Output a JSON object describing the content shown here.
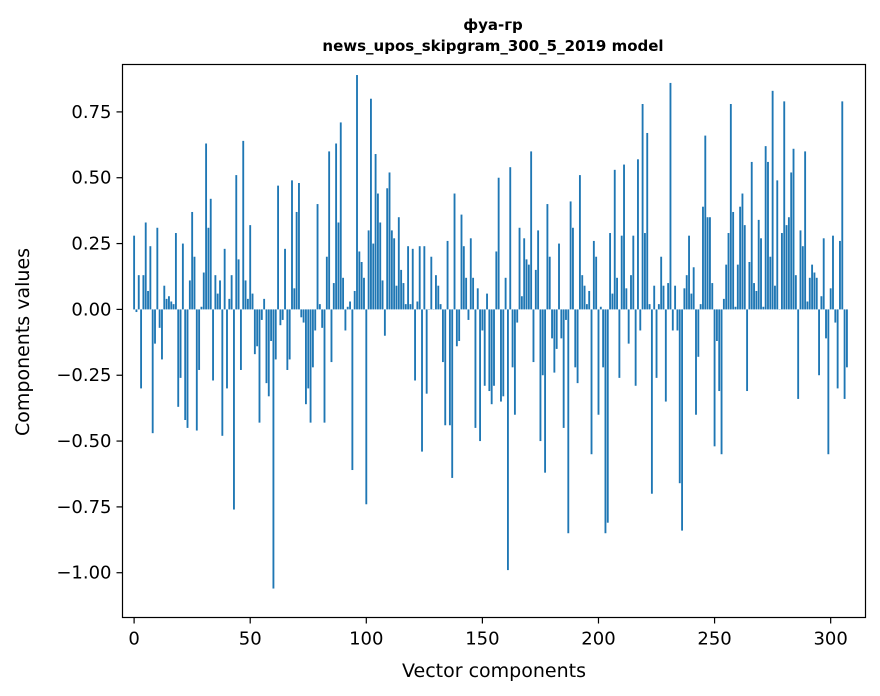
{
  "chart_data": {
    "type": "bar",
    "title": "фуа-гр",
    "subtitle": "news_upos_skipgram_300_5_2019 model",
    "xlabel": "Vector components",
    "ylabel": "Components values",
    "xlim": [
      -5,
      315
    ],
    "ylim": [
      -1.17,
      0.93
    ],
    "xticks": [
      0,
      50,
      100,
      150,
      200,
      250,
      300
    ],
    "xtick_labels": [
      "0",
      "50",
      "100",
      "150",
      "200",
      "250",
      "300"
    ],
    "yticks": [
      0.75,
      0.5,
      0.25,
      0.0,
      -0.25,
      -0.5,
      -0.75,
      -1.0
    ],
    "ytick_labels": [
      "0.75",
      "0.50",
      "0.25",
      "0.00",
      "−0.25",
      "−0.50",
      "−0.75",
      "−1.00"
    ],
    "bar_color": "#1f77b4",
    "grid": false,
    "legend": "none",
    "values": [
      0.28,
      -0.01,
      0.13,
      -0.3,
      0.13,
      0.33,
      0.07,
      0.24,
      -0.47,
      -0.13,
      0.31,
      -0.07,
      -0.19,
      0.09,
      0.04,
      0.05,
      0.03,
      0.02,
      0.29,
      -0.37,
      -0.26,
      0.25,
      -0.42,
      -0.45,
      0.11,
      0.37,
      0.2,
      -0.46,
      -0.23,
      0.01,
      0.14,
      0.63,
      0.31,
      0.42,
      -0.27,
      0.13,
      0.06,
      0.11,
      -0.48,
      0.23,
      -0.3,
      0.04,
      0.13,
      -0.76,
      0.51,
      0.19,
      -0.23,
      0.64,
      0.11,
      0.04,
      0.32,
      0.06,
      -0.17,
      -0.14,
      -0.43,
      -0.04,
      0.04,
      -0.28,
      -0.33,
      -0.12,
      -1.06,
      -0.19,
      0.47,
      -0.06,
      -0.04,
      0.23,
      -0.23,
      -0.19,
      0.49,
      0.08,
      0.37,
      0.48,
      -0.03,
      -0.05,
      -0.36,
      -0.3,
      -0.43,
      -0.22,
      -0.08,
      0.4,
      0.02,
      -0.07,
      -0.43,
      0.2,
      0.6,
      -0.2,
      0.1,
      0.63,
      0.33,
      0.71,
      0.12,
      -0.08,
      0.01,
      0.03,
      -0.61,
      0.07,
      0.89,
      0.22,
      0.18,
      0.12,
      -0.74,
      0.3,
      0.8,
      0.25,
      0.59,
      0.44,
      0.33,
      0.11,
      -0.1,
      0.46,
      0.52,
      0.3,
      0.27,
      0.09,
      0.35,
      0.15,
      0.1,
      0.02,
      0.24,
      0.02,
      0.23,
      -0.27,
      0.03,
      0.24,
      -0.54,
      0.24,
      -0.32,
      0.0,
      0.2,
      0.0,
      0.13,
      0.09,
      0.02,
      -0.2,
      -0.44,
      0.26,
      -0.44,
      -0.64,
      0.44,
      -0.14,
      -0.12,
      0.36,
      0.24,
      0.12,
      -0.04,
      0.27,
      0.12,
      -0.45,
      0.08,
      -0.5,
      -0.08,
      -0.29,
      0.06,
      -0.31,
      -0.36,
      -0.29,
      0.22,
      0.5,
      -0.35,
      -0.33,
      0.12,
      -0.99,
      0.54,
      -0.22,
      -0.4,
      -0.05,
      0.31,
      0.05,
      0.27,
      0.19,
      0.17,
      0.6,
      -0.2,
      0.15,
      0.3,
      -0.5,
      -0.25,
      -0.62,
      0.4,
      0.2,
      -0.11,
      -0.24,
      -0.15,
      0.25,
      -0.11,
      -0.45,
      -0.04,
      -0.85,
      0.41,
      0.31,
      -0.22,
      -0.28,
      0.51,
      0.13,
      0.09,
      0.02,
      0.07,
      -0.55,
      0.26,
      0.2,
      -0.4,
      0.01,
      -0.22,
      -0.85,
      -0.81,
      0.29,
      0.06,
      0.53,
      0.12,
      -0.26,
      0.28,
      0.55,
      0.08,
      -0.13,
      0.13,
      0.28,
      -0.29,
      0.57,
      -0.08,
      0.78,
      0.29,
      0.67,
      0.02,
      -0.7,
      0.09,
      -0.26,
      0.02,
      0.2,
      0.09,
      -0.35,
      0.1,
      0.86,
      -0.08,
      0.09,
      -0.08,
      -0.66,
      -0.84,
      0.08,
      0.13,
      0.28,
      0.06,
      0.16,
      -0.4,
      -0.18,
      0.02,
      0.39,
      0.66,
      0.35,
      0.35,
      0.1,
      -0.52,
      -0.12,
      -0.31,
      -0.55,
      0.04,
      0.17,
      0.29,
      0.78,
      0.37,
      0.01,
      0.17,
      0.39,
      0.44,
      0.32,
      -0.31,
      0.18,
      0.56,
      0.1,
      0.07,
      0.34,
      0.27,
      0.01,
      0.62,
      0.56,
      0.2,
      0.83,
      0.09,
      0.49,
      0.0,
      0.29,
      0.79,
      0.32,
      0.35,
      0.52,
      0.61,
      0.13,
      -0.34,
      0.3,
      0.24,
      0.6,
      0.03,
      0.12,
      0.17,
      0.14,
      0.12,
      -0.25,
      0.05,
      0.27,
      -0.11,
      -0.55,
      0.08,
      0.28,
      -0.05,
      -0.3,
      0.26,
      0.79,
      -0.34,
      -0.22
    ]
  }
}
